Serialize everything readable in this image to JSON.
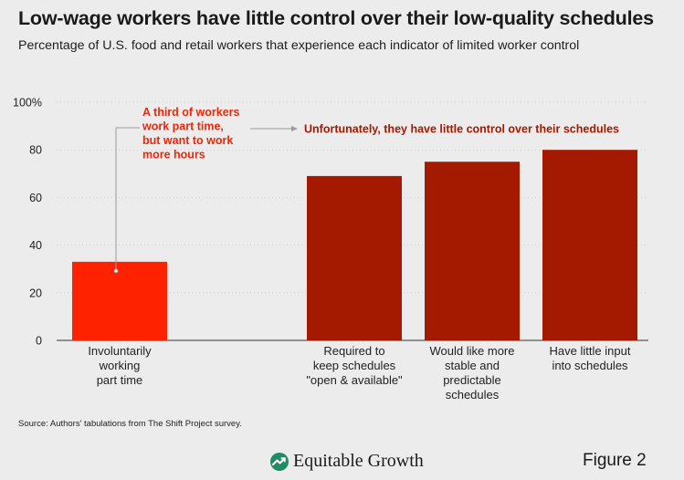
{
  "header": {
    "title": "Low-wage workers have little control over their low-quality schedules",
    "subtitle": "Percentage of U.S. food and retail workers that experience each indicator of limited worker control"
  },
  "chart_data": {
    "type": "bar",
    "title": "Low-wage workers have little control over their low-quality schedules",
    "subtitle": "Percentage of U.S. food and retail workers that experience each indicator of limited worker control",
    "xlabel": "",
    "ylabel": "",
    "ylim": [
      0,
      100
    ],
    "yticks": [
      0,
      20,
      40,
      60,
      80,
      100
    ],
    "ytick_labels": [
      "0",
      "20",
      "40",
      "60",
      "80",
      "100%"
    ],
    "grid": true,
    "categories": [
      [
        "Involuntarily",
        "working",
        "part time"
      ],
      [
        "Required to",
        "keep schedules",
        "\"open & available\""
      ],
      [
        "Would like more",
        "stable and",
        "predictable",
        "schedules"
      ],
      [
        "Have little input",
        "into schedules"
      ]
    ],
    "values": [
      33,
      69,
      75,
      80
    ],
    "colors": [
      "#ff2200",
      "#a31a00",
      "#a31a00",
      "#a31a00"
    ],
    "annotations": [
      {
        "text": [
          "A third of workers",
          "work part time,",
          "but want to work",
          "more hours"
        ],
        "color": "#e8290b"
      },
      {
        "text": [
          "Unfortunately, they have little control over their schedules"
        ],
        "color": "#a31a00"
      }
    ]
  },
  "footer": {
    "source": "Source: Authors' tabulations from The Shift Project survey.",
    "brand": "Equitable Growth",
    "brand_icon": "equitable-growth-logo-icon",
    "figure_label": "Figure 2"
  }
}
